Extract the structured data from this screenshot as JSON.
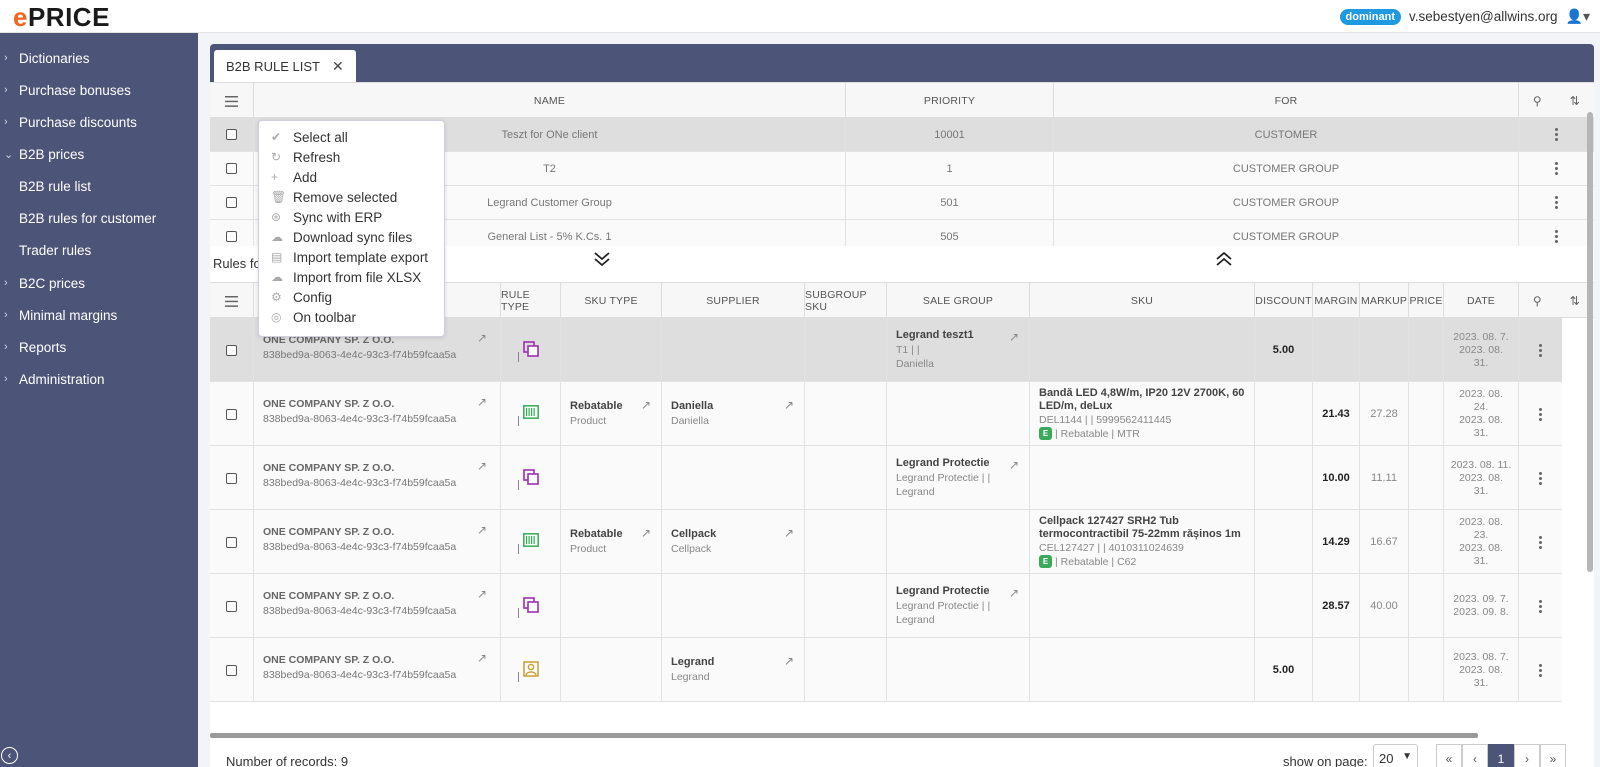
{
  "header": {
    "logo": "PRICE",
    "logo_e": "e",
    "badge": "dominant",
    "user_email": "v.sebestyen@allwins.org"
  },
  "sidebar": {
    "items": [
      {
        "label": "Dictionaries",
        "chevron": "›"
      },
      {
        "label": "Purchase bonuses",
        "chevron": "›"
      },
      {
        "label": "Purchase discounts",
        "chevron": "›"
      },
      {
        "label": "B2B prices",
        "chevron": "⌄"
      },
      {
        "label": "B2B rule list"
      },
      {
        "label": "B2B rules for customer"
      },
      {
        "label": "Trader rules"
      },
      {
        "label": "B2C prices",
        "chevron": "›"
      },
      {
        "label": "Minimal margins",
        "chevron": "›"
      },
      {
        "label": "Reports",
        "chevron": "›"
      },
      {
        "label": "Administration",
        "chevron": "›"
      }
    ]
  },
  "tab": {
    "label": "B2B RULE LIST",
    "close": "✕"
  },
  "table1": {
    "headers": {
      "name": "NAME",
      "priority": "PRIORITY",
      "for": "FOR"
    },
    "rows": [
      {
        "name": "Teszt for ONe client",
        "priority": "10001",
        "for": "CUSTOMER"
      },
      {
        "name": "T2",
        "priority": "1",
        "for": "CUSTOMER GROUP"
      },
      {
        "name": "Legrand Customer Group",
        "priority": "501",
        "for": "CUSTOMER GROUP"
      },
      {
        "name": "General List - 5% K.Cs. 1",
        "priority": "505",
        "for": "CUSTOMER GROUP"
      }
    ]
  },
  "divider": {
    "label": "Rules fo"
  },
  "table2": {
    "headers": {
      "rule_type": "RULE TYPE",
      "sku_type": "SKU TYPE",
      "supplier": "SUPPLIER",
      "subgroup_sku": "SUBGROUP SKU",
      "sale_group": "SALE GROUP",
      "sku": "SKU",
      "discount": "DISCOUNT",
      "margin": "MARGIN",
      "markup": "MARKUP",
      "price": "PRICE",
      "date": "DATE"
    },
    "rows": [
      {
        "company": "ONE COMPANY SP. Z O.O.",
        "uuid": "838bed9a-8063-4e4c-93c3-f74b59fcaa5a",
        "rule_icon": "copy-icon",
        "sku_type": "",
        "sku_type_sub": "",
        "supplier": "",
        "supplier_sub": "",
        "sale_group": "Legrand teszt1",
        "sale_group_l2": "T1 |  |",
        "sale_group_l3": "Daniella",
        "sku_title": "",
        "sku_code": "",
        "sku_tags": "",
        "discount": "5.00",
        "margin": "",
        "markup": "",
        "price": "",
        "date1": "2023. 08. 7.",
        "date2": "2023. 08.",
        "date3": "31."
      },
      {
        "company": "ONE COMPANY SP. Z O.O.",
        "uuid": "838bed9a-8063-4e4c-93c3-f74b59fcaa5a",
        "rule_icon": "barcode-icon",
        "sku_type": "Rebatable",
        "sku_type_sub": "Product",
        "supplier": "Daniella",
        "supplier_sub": "Daniella",
        "sale_group": "",
        "sale_group_l2": "",
        "sale_group_l3": "",
        "sku_title": "Bandă LED 4,8W/m, IP20 12V 2700K, 60 LED/m, deLux",
        "sku_code": "DEL1144 |  | 5999562411445",
        "sku_tags": "| Rebatable | MTR",
        "discount": "",
        "margin": "21.43",
        "markup": "27.28",
        "price": "",
        "date1": "2023. 08.",
        "date2": "24.",
        "date3": "2023. 08.",
        "date4": "31."
      },
      {
        "company": "ONE COMPANY SP. Z O.O.",
        "uuid": "838bed9a-8063-4e4c-93c3-f74b59fcaa5a",
        "rule_icon": "copy-icon",
        "sku_type": "",
        "sku_type_sub": "",
        "supplier": "",
        "supplier_sub": "",
        "sale_group": "Legrand Protectie",
        "sale_group_l2": "Legrand Protectie |  |",
        "sale_group_l3": "Legrand",
        "sku_title": "",
        "sku_code": "",
        "sku_tags": "",
        "discount": "",
        "margin": "10.00",
        "markup": "11.11",
        "price": "",
        "date1": "2023. 08. 11.",
        "date2": "2023. 08.",
        "date3": "31."
      },
      {
        "company": "ONE COMPANY SP. Z O.O.",
        "uuid": "838bed9a-8063-4e4c-93c3-f74b59fcaa5a",
        "rule_icon": "barcode-icon",
        "sku_type": "Rebatable",
        "sku_type_sub": "Product",
        "supplier": "Cellpack",
        "supplier_sub": "Cellpack",
        "sale_group": "",
        "sale_group_l2": "",
        "sale_group_l3": "",
        "sku_title": "Cellpack 127427 SRH2 Tub termocontractibil 75-22mm rășinos 1m",
        "sku_code": "CEL127427 |  | 4010311024639",
        "sku_tags": "| Rebatable | C62",
        "discount": "",
        "margin": "14.29",
        "markup": "16.67",
        "price": "",
        "date1": "2023. 08.",
        "date2": "23.",
        "date3": "2023. 08.",
        "date4": "31."
      },
      {
        "company": "ONE COMPANY SP. Z O.O.",
        "uuid": "838bed9a-8063-4e4c-93c3-f74b59fcaa5a",
        "rule_icon": "copy-icon",
        "sku_type": "",
        "sku_type_sub": "",
        "supplier": "",
        "supplier_sub": "",
        "sale_group": "Legrand Protectie",
        "sale_group_l2": "Legrand Protectie |  |",
        "sale_group_l3": "Legrand",
        "sku_title": "",
        "sku_code": "",
        "sku_tags": "",
        "discount": "",
        "margin": "28.57",
        "markup": "40.00",
        "price": "",
        "date1": "2023. 09. 7.",
        "date2": "2023. 09. 8.",
        "date3": ""
      },
      {
        "company": "ONE COMPANY SP. Z O.O.",
        "uuid": "838bed9a-8063-4e4c-93c3-f74b59fcaa5a",
        "rule_icon": "supplier-icon",
        "sku_type": "",
        "sku_type_sub": "",
        "supplier": "Legrand",
        "supplier_sub": "Legrand",
        "sale_group": "",
        "sale_group_l2": "",
        "sale_group_l3": "",
        "sku_title": "",
        "sku_code": "",
        "sku_tags": "",
        "discount": "5.00",
        "margin": "",
        "markup": "",
        "price": "",
        "date1": "2023. 08. 7.",
        "date2": "2023. 08.",
        "date3": "31."
      }
    ]
  },
  "footer": {
    "records": "Number of records: 9",
    "show_on_page": "show on page:",
    "page_size": "20",
    "pages": [
      "«",
      "‹",
      "1",
      "›",
      "»"
    ]
  },
  "menu": {
    "items": [
      {
        "label": "Select all",
        "icon": "check-icon"
      },
      {
        "label": "Refresh",
        "icon": "refresh-icon"
      },
      {
        "label": "Add",
        "icon": "plus-icon"
      },
      {
        "label": "Remove selected",
        "icon": "trash-icon"
      },
      {
        "label": "Sync with ERP",
        "icon": "sync-icon"
      },
      {
        "label": "Download sync files",
        "icon": "cloud-download-icon"
      },
      {
        "label": "Import template export",
        "icon": "template-icon"
      },
      {
        "label": "Import from file XLSX",
        "icon": "cloud-upload-icon"
      },
      {
        "label": "Config",
        "icon": "gear-icon"
      },
      {
        "label": "On toolbar",
        "icon": "eye-icon"
      }
    ]
  },
  "colors": {
    "sidebar": "#4c5477",
    "accent": "#f26522",
    "badge": "#1e9be0",
    "rule_purple": "#9b2fae",
    "rule_green": "#3aaa5a",
    "rule_gold": "#c8a032"
  }
}
